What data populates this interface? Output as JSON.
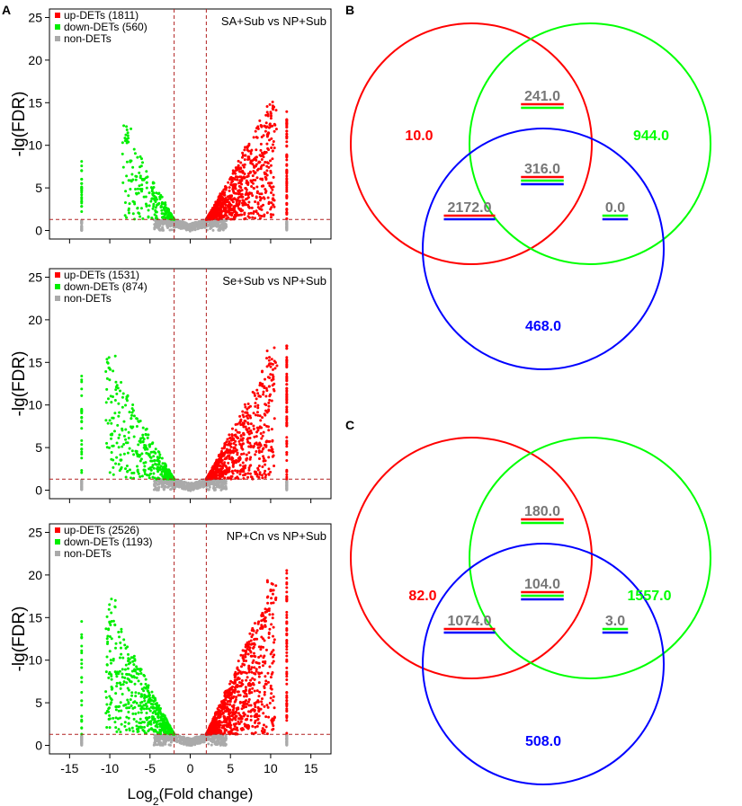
{
  "colors": {
    "up": "#ff0000",
    "down": "#00ee00",
    "non": "#aaaaaa",
    "threshold": "#b22222",
    "set1": "#ff0000",
    "set2": "#00ff00",
    "set3": "#0000ff",
    "shared": "#777777"
  },
  "panel_letters": {
    "a": "A",
    "b": "B",
    "c": "C"
  },
  "chart_data": [
    {
      "type": "scatter",
      "panel": "A",
      "title": "SA+Sub vs NP+Sub",
      "xlabel": "Log2(Fold change)",
      "ylabel": "-lg(FDR)",
      "xlim": [
        -17.5,
        17.5
      ],
      "ylim": [
        -1,
        26
      ],
      "xticks": [
        -15,
        -10,
        -5,
        0,
        5,
        10,
        15
      ],
      "yticks": [
        0,
        5,
        10,
        15,
        20,
        25
      ],
      "thresholds": {
        "fc": [
          -2,
          2
        ],
        "fdr": 1.3
      },
      "series": [
        {
          "name": "up-DETs",
          "count": 1811,
          "label": "up-DETs (1811)",
          "max_y": 15.7,
          "infinite_y_max": 14.0
        },
        {
          "name": "down-DETs",
          "count": 560,
          "label": "down-DETs (560)",
          "max_y": 12.5,
          "infinite_y_max": 8.2
        },
        {
          "name": "non-DETs",
          "label": "non-DETs"
        }
      ]
    },
    {
      "type": "scatter",
      "panel": "A",
      "title": "Se+Sub vs NP+Sub",
      "xlabel": "Log2(Fold change)",
      "ylabel": "-lg(FDR)",
      "xlim": [
        -17.5,
        17.5
      ],
      "ylim": [
        -1,
        26
      ],
      "xticks": [
        -15,
        -10,
        -5,
        0,
        5,
        10,
        15
      ],
      "yticks": [
        0,
        5,
        10,
        15,
        20,
        25
      ],
      "thresholds": {
        "fc": [
          -2,
          2
        ],
        "fdr": 1.3
      },
      "series": [
        {
          "name": "up-DETs",
          "count": 1531,
          "label": "up-DETs (1531)",
          "max_y": 16.4,
          "infinite_y_max": 17.0
        },
        {
          "name": "down-DETs",
          "count": 874,
          "label": "down-DETs (874)",
          "max_y": 16.1,
          "infinite_y_max": 13.5
        },
        {
          "name": "non-DETs",
          "label": "non-DETs"
        }
      ]
    },
    {
      "type": "scatter",
      "panel": "A",
      "title": "NP+Cn vs NP+Sub",
      "xlabel": "Log2(Fold change)",
      "ylabel": "-lg(FDR)",
      "xlim": [
        -17.5,
        17.5
      ],
      "ylim": [
        -1,
        26
      ],
      "xticks": [
        -15,
        -10,
        -5,
        0,
        5,
        10,
        15
      ],
      "yticks": [
        0,
        5,
        10,
        15,
        20,
        25
      ],
      "thresholds": {
        "fc": [
          -2,
          2
        ],
        "fdr": 1.3
      },
      "series": [
        {
          "name": "up-DETs",
          "count": 2526,
          "label": "up-DETs (2526)",
          "max_y": 19.5,
          "infinite_y_max": 21.0
        },
        {
          "name": "down-DETs",
          "count": 1193,
          "label": "down-DETs (1193)",
          "max_y": 17.4,
          "infinite_y_max": 15.0
        },
        {
          "name": "non-DETs",
          "label": "non-DETs"
        }
      ]
    },
    {
      "type": "venn",
      "panel": "B",
      "sets": [
        "red",
        "green",
        "blue"
      ],
      "regions": {
        "red_only": "10.0",
        "green_only": "944.0",
        "blue_only": "468.0",
        "red_green": "241.0",
        "red_blue": "2172.0",
        "green_blue": "0.0",
        "all": "316.0"
      }
    },
    {
      "type": "venn",
      "panel": "C",
      "sets": [
        "red",
        "green",
        "blue"
      ],
      "regions": {
        "red_only": "82.0",
        "green_only": "1557.0",
        "blue_only": "508.0",
        "red_green": "180.0",
        "red_blue": "1074.0",
        "green_blue": "3.0",
        "all": "104.0"
      }
    }
  ]
}
